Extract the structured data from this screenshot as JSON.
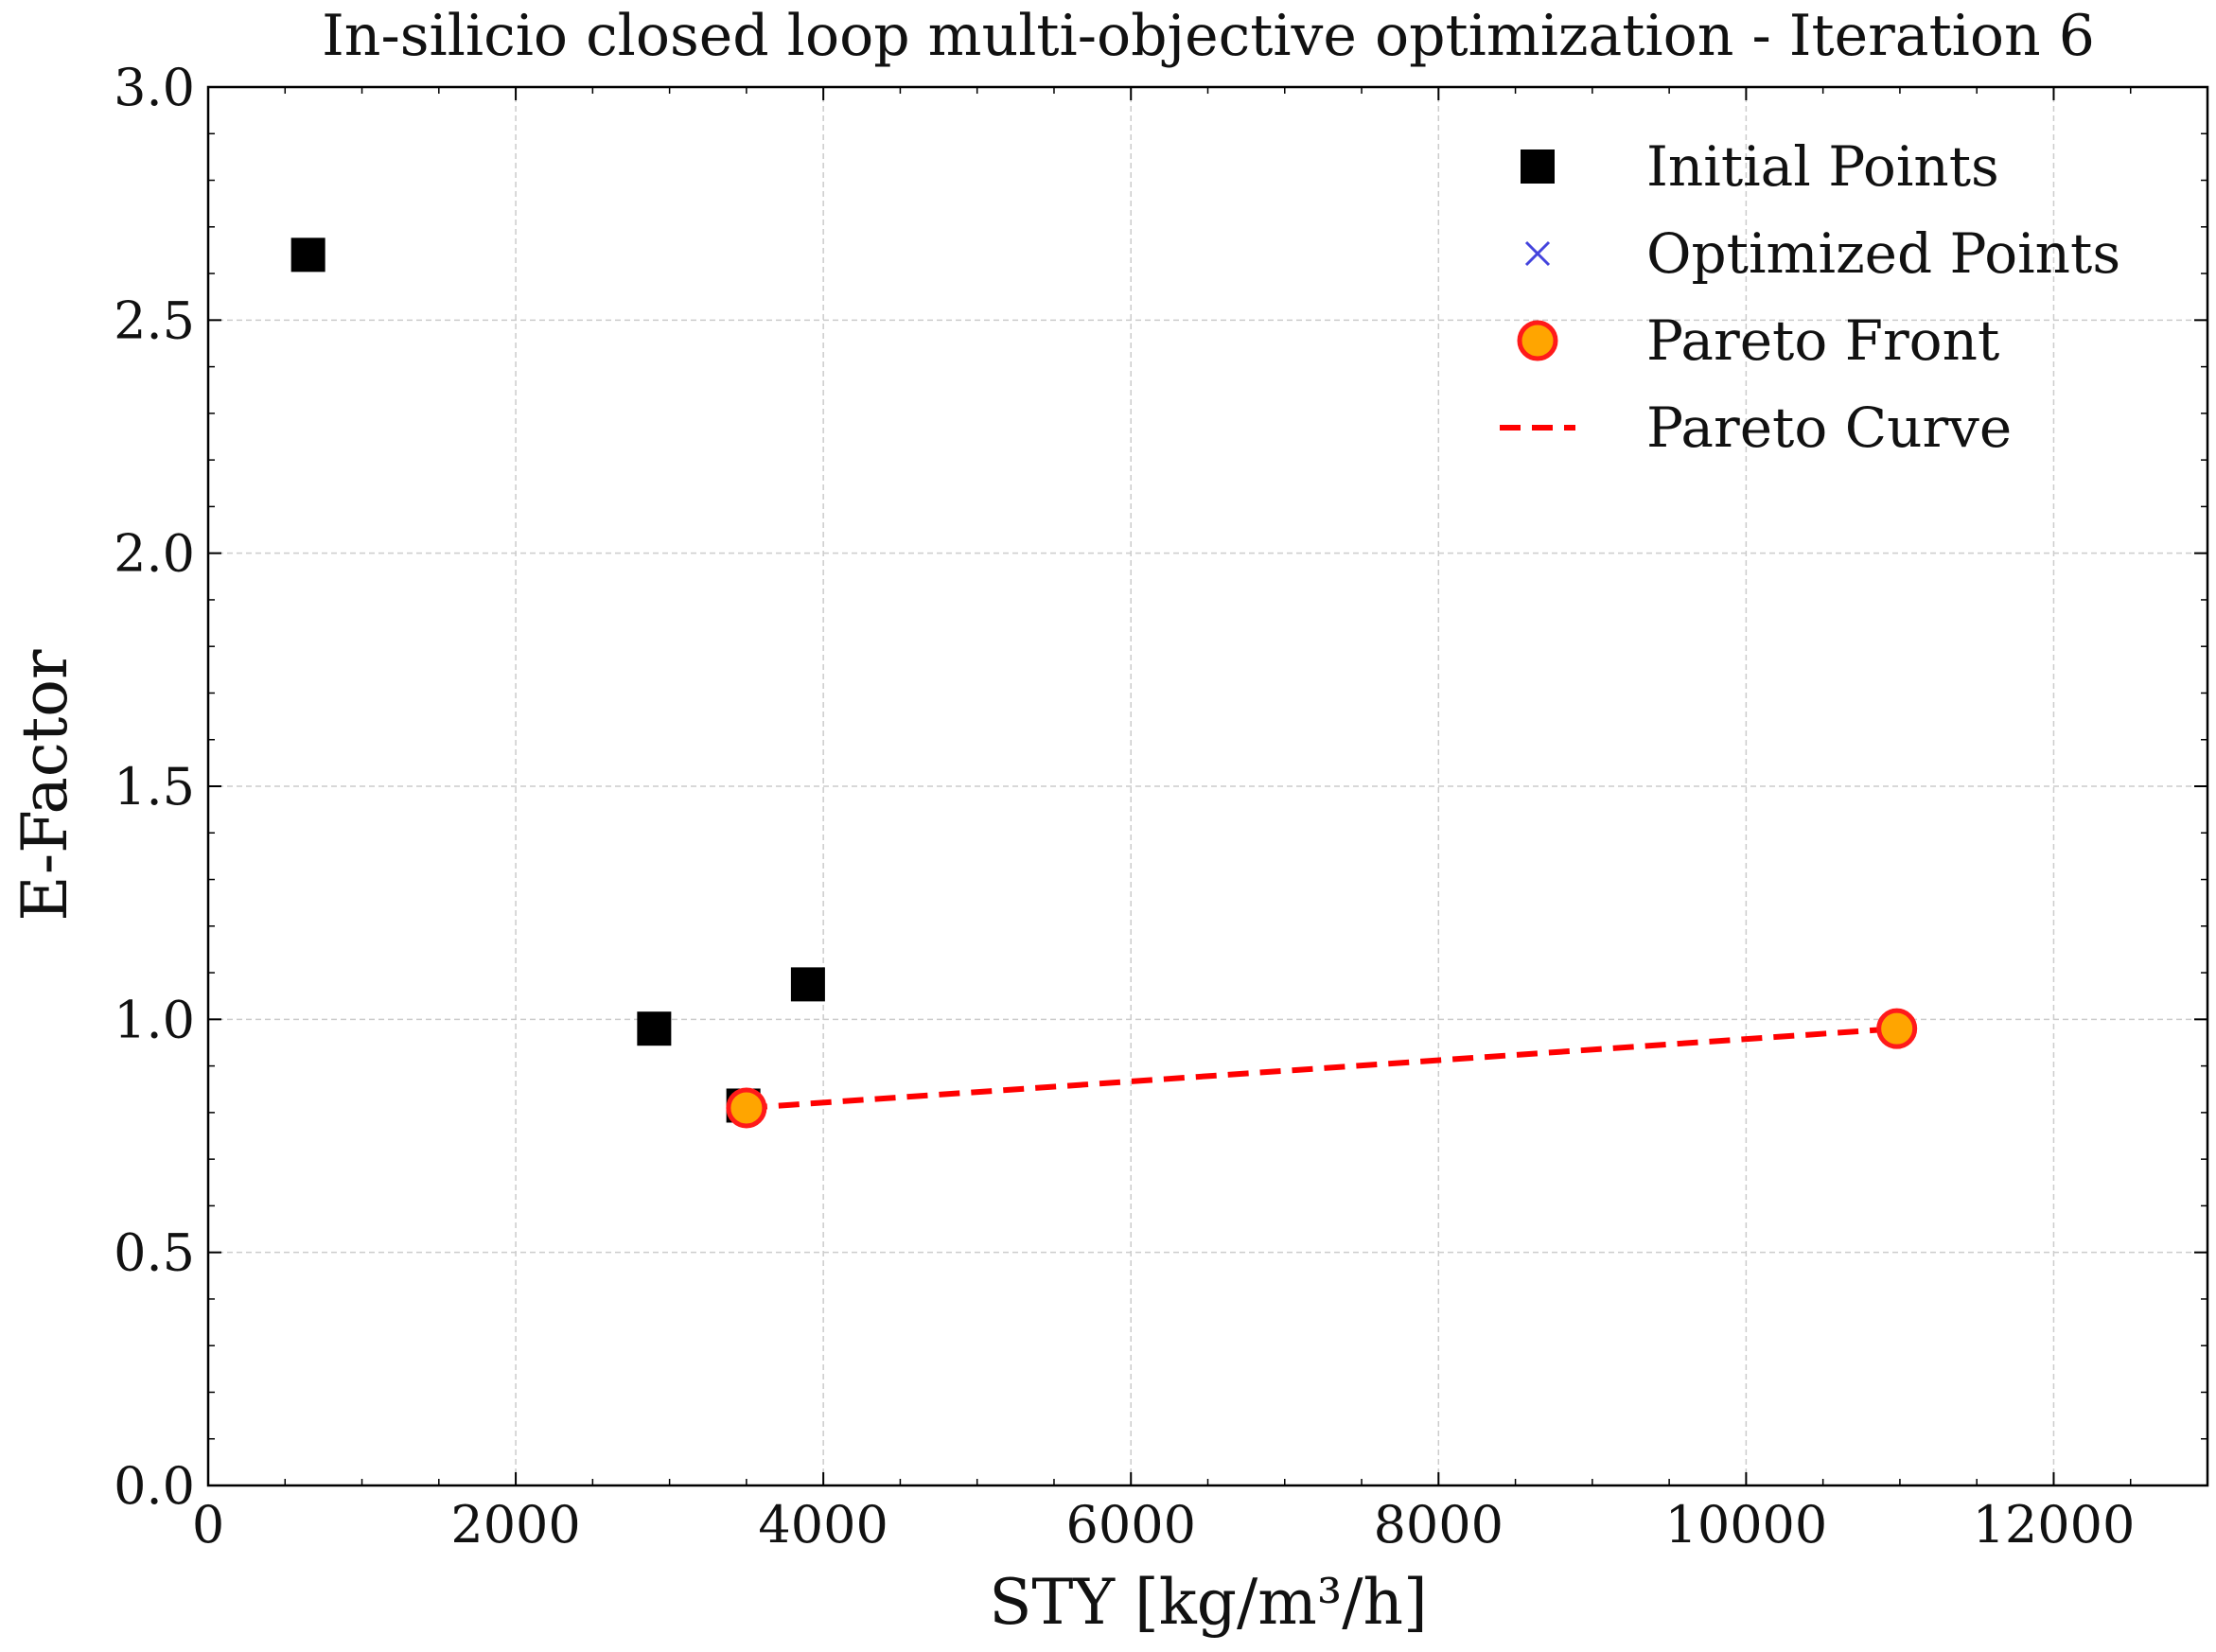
{
  "chart_data": {
    "type": "scatter",
    "title": "In-silicio closed loop multi-objective optimization - Iteration 6",
    "xlabel": "STY [kg/m³/h]",
    "ylabel": "E-Factor",
    "xlim": [
      0,
      13000
    ],
    "ylim": [
      0.0,
      3.0
    ],
    "x_ticks": [
      0,
      2000,
      4000,
      6000,
      8000,
      10000,
      12000
    ],
    "x_tick_labels": [
      "0",
      "2000",
      "4000",
      "6000",
      "8000",
      "10000",
      "12000"
    ],
    "y_ticks": [
      0.0,
      0.5,
      1.0,
      1.5,
      2.0,
      2.5,
      3.0
    ],
    "y_tick_labels": [
      "0.0",
      "0.5",
      "1.0",
      "1.5",
      "2.0",
      "2.5",
      "3.0"
    ],
    "x_minor_step": 500,
    "y_minor_step": 0.1,
    "grid": true,
    "legend_position": "top-right",
    "series": [
      {
        "name": "Initial Points",
        "marker": "square",
        "color": "#000000",
        "points": [
          {
            "x": 650,
            "y": 2.64
          },
          {
            "x": 2900,
            "y": 0.98
          },
          {
            "x": 3900,
            "y": 1.075
          },
          {
            "x": 3480,
            "y": 0.815
          }
        ]
      },
      {
        "name": "Optimized Points",
        "marker": "x",
        "color": "#4444dd",
        "points": [
          {
            "x": 3500,
            "y": 0.81
          },
          {
            "x": 10980,
            "y": 0.98
          }
        ]
      },
      {
        "name": "Pareto Front",
        "marker": "circle",
        "color": "#ffa500",
        "edge_color": "#ff1a1a",
        "points": [
          {
            "x": 3500,
            "y": 0.81
          },
          {
            "x": 10980,
            "y": 0.98
          }
        ]
      },
      {
        "name": "Pareto Curve",
        "marker": "dashed-line",
        "color": "#ff0000",
        "points": [
          {
            "x": 3500,
            "y": 0.81
          },
          {
            "x": 10980,
            "y": 0.98
          }
        ]
      }
    ]
  }
}
